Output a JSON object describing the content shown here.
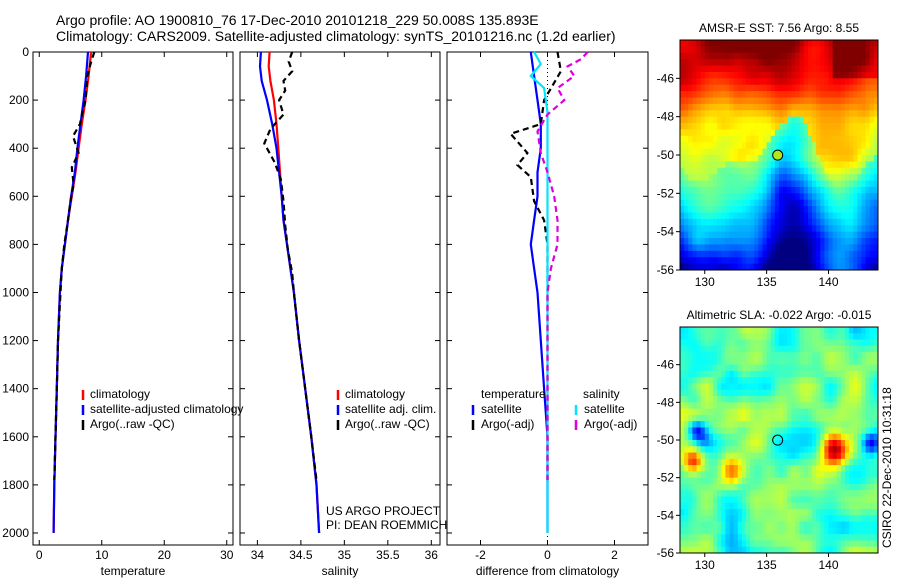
{
  "header": {
    "line1": "Argo profile: AO 1900810_76 17-Dec-2010 20101218_229 50.008S 135.893E",
    "line2": "Climatology: CARS2009. Satellite-adjusted climatology: synTS_20101216.nc (1.2d earlier)"
  },
  "side_label": "CSIRO 22-Dec-2010 10:31:18",
  "colors": {
    "climatology": "#ff0000",
    "satellite": "#0000ff",
    "argo": "#000000",
    "sat_salinity": "#00e5ff",
    "argo_salinity": "#dd00dd"
  },
  "chart_data": [
    {
      "type": "line",
      "id": "temperature",
      "xlabel": "temperature",
      "xlim": [
        -1,
        31
      ],
      "ylim": [
        2050,
        0
      ],
      "xticks": [
        0,
        10,
        20,
        30
      ],
      "yticks": [
        0,
        200,
        400,
        600,
        800,
        1000,
        1200,
        1400,
        1600,
        1800,
        2000
      ],
      "legend": [
        "climatology",
        "satellite-adjusted climatology",
        "Argo(..raw -QC)"
      ],
      "series": [
        {
          "name": "climatology",
          "color": "#ff0000",
          "dash": false,
          "points": [
            [
              8.3,
              0
            ],
            [
              7.9,
              100
            ],
            [
              7.4,
              200
            ],
            [
              6.8,
              300
            ],
            [
              6.3,
              400
            ],
            [
              5.8,
              500
            ],
            [
              5.2,
              600
            ],
            [
              4.6,
              700
            ],
            [
              4.1,
              800
            ],
            [
              3.6,
              900
            ],
            [
              3.3,
              1000
            ],
            [
              3.0,
              1200
            ],
            [
              2.8,
              1400
            ],
            [
              2.6,
              1600
            ],
            [
              2.4,
              1800
            ],
            [
              2.3,
              2000
            ]
          ]
        },
        {
          "name": "satellite-adjusted climatology",
          "color": "#0000ff",
          "dash": false,
          "points": [
            [
              7.8,
              0
            ],
            [
              7.5,
              100
            ],
            [
              7.1,
              200
            ],
            [
              6.6,
              300
            ],
            [
              6.1,
              400
            ],
            [
              5.7,
              500
            ],
            [
              5.1,
              600
            ],
            [
              4.6,
              700
            ],
            [
              4.1,
              800
            ],
            [
              3.6,
              900
            ],
            [
              3.3,
              1000
            ],
            [
              3.0,
              1200
            ],
            [
              2.8,
              1400
            ],
            [
              2.6,
              1600
            ],
            [
              2.4,
              1800
            ],
            [
              2.3,
              2000
            ]
          ]
        },
        {
          "name": "Argo(..raw -QC)",
          "color": "#000000",
          "dash": true,
          "points": [
            [
              8.8,
              0
            ],
            [
              8.2,
              50
            ],
            [
              7.7,
              100
            ],
            [
              7.4,
              200
            ],
            [
              6.5,
              300
            ],
            [
              5.4,
              350
            ],
            [
              6.3,
              420
            ],
            [
              5.2,
              480
            ],
            [
              5.5,
              550
            ],
            [
              5.0,
              620
            ],
            [
              4.6,
              700
            ],
            [
              4.0,
              800
            ],
            [
              3.6,
              900
            ],
            [
              3.4,
              1000
            ],
            [
              3.0,
              1200
            ],
            [
              2.8,
              1400
            ],
            [
              2.6,
              1600
            ],
            [
              2.4,
              1780
            ]
          ]
        }
      ]
    },
    {
      "type": "line",
      "id": "salinity",
      "xlabel": "salinity",
      "xlim": [
        33.8,
        36.1
      ],
      "ylim": [
        2050,
        0
      ],
      "xticks": [
        34,
        34.5,
        35,
        35.5,
        36
      ],
      "legend": [
        "climatology",
        "satellite adj. clim.",
        "Argo(..raw -QC)"
      ],
      "annotation": [
        "US ARGO PROJECT",
        "PI: DEAN ROEMMICH"
      ],
      "series": [
        {
          "name": "climatology",
          "color": "#ff0000",
          "dash": false,
          "points": [
            [
              34.14,
              0
            ],
            [
              34.13,
              60
            ],
            [
              34.15,
              120
            ],
            [
              34.19,
              200
            ],
            [
              34.22,
              300
            ],
            [
              34.24,
              400
            ],
            [
              34.26,
              500
            ],
            [
              34.28,
              600
            ],
            [
              34.3,
              700
            ],
            [
              34.34,
              800
            ],
            [
              34.38,
              900
            ],
            [
              34.42,
              1000
            ],
            [
              34.48,
              1200
            ],
            [
              34.55,
              1400
            ],
            [
              34.62,
              1600
            ],
            [
              34.68,
              1800
            ],
            [
              34.71,
              2000
            ]
          ]
        },
        {
          "name": "satellite adj. clim.",
          "color": "#0000ff",
          "dash": false,
          "points": [
            [
              34.04,
              0
            ],
            [
              34.03,
              60
            ],
            [
              34.05,
              120
            ],
            [
              34.11,
              200
            ],
            [
              34.17,
              300
            ],
            [
              34.22,
              400
            ],
            [
              34.25,
              500
            ],
            [
              34.28,
              600
            ],
            [
              34.3,
              700
            ],
            [
              34.34,
              800
            ],
            [
              34.38,
              900
            ],
            [
              34.42,
              1000
            ],
            [
              34.48,
              1200
            ],
            [
              34.55,
              1400
            ],
            [
              34.62,
              1600
            ],
            [
              34.68,
              1800
            ],
            [
              34.71,
              2000
            ]
          ]
        },
        {
          "name": "Argo(..raw -QC)",
          "color": "#000000",
          "dash": true,
          "points": [
            [
              34.4,
              0
            ],
            [
              34.36,
              40
            ],
            [
              34.4,
              80
            ],
            [
              34.3,
              120
            ],
            [
              34.32,
              160
            ],
            [
              34.25,
              200
            ],
            [
              34.3,
              260
            ],
            [
              34.15,
              320
            ],
            [
              34.08,
              380
            ],
            [
              34.2,
              460
            ],
            [
              34.27,
              530
            ],
            [
              34.3,
              620
            ],
            [
              34.32,
              720
            ],
            [
              34.35,
              820
            ],
            [
              34.4,
              920
            ],
            [
              34.42,
              1000
            ],
            [
              34.48,
              1200
            ],
            [
              34.55,
              1400
            ],
            [
              34.62,
              1600
            ],
            [
              34.68,
              1780
            ]
          ]
        }
      ]
    },
    {
      "type": "line",
      "id": "difference",
      "xlabel": "difference from climatology",
      "xlim": [
        -3,
        3
      ],
      "ylim": [
        2050,
        0
      ],
      "xticks": [
        -2,
        0,
        2
      ],
      "legend_temp_title": "temperature",
      "legend_sal_title": "salinity",
      "legend": [
        "satellite",
        "Argo(-adj)",
        "satellite",
        "Argo(-adj)"
      ],
      "series": [
        {
          "name": "temperature satellite",
          "color": "#0000ff",
          "dash": false,
          "points": [
            [
              -0.5,
              0
            ],
            [
              -0.4,
              100
            ],
            [
              -0.3,
              200
            ],
            [
              -0.2,
              300
            ],
            [
              -0.2,
              400
            ],
            [
              -0.3,
              500
            ],
            [
              -0.3,
              600
            ],
            [
              -0.4,
              700
            ],
            [
              -0.5,
              800
            ],
            [
              -0.4,
              900
            ],
            [
              -0.3,
              1000
            ],
            [
              -0.2,
              1200
            ],
            [
              -0.1,
              1400
            ],
            [
              0,
              1600
            ],
            [
              0,
              2000
            ]
          ]
        },
        {
          "name": "temperature Argo(-adj)",
          "color": "#000000",
          "dash": true,
          "points": [
            [
              0.3,
              0
            ],
            [
              0.4,
              80
            ],
            [
              -0.1,
              200
            ],
            [
              -0.2,
              300
            ],
            [
              -1.1,
              340
            ],
            [
              -0.6,
              420
            ],
            [
              -0.9,
              470
            ],
            [
              -0.5,
              520
            ],
            [
              -0.4,
              620
            ],
            [
              -0.1,
              700
            ],
            [
              0,
              800
            ],
            [
              0,
              1000
            ],
            [
              0,
              1200
            ],
            [
              0,
              1400
            ],
            [
              0,
              1600
            ],
            [
              0,
              1780
            ]
          ]
        },
        {
          "name": "salinity satellite",
          "color": "#00e5ff",
          "dash": false,
          "points": [
            [
              -0.4,
              0
            ],
            [
              -0.2,
              50
            ],
            [
              -0.5,
              100
            ],
            [
              -0.1,
              150
            ],
            [
              0,
              250
            ],
            [
              0,
              400
            ],
            [
              0,
              600
            ],
            [
              0,
              800
            ],
            [
              0,
              1000
            ],
            [
              0,
              1200
            ],
            [
              0,
              1400
            ],
            [
              0,
              1600
            ],
            [
              0,
              1800
            ],
            [
              0,
              2000
            ]
          ]
        },
        {
          "name": "salinity Argo(-adj)",
          "color": "#dd00dd",
          "dash": true,
          "points": [
            [
              1.2,
              0
            ],
            [
              1.0,
              30
            ],
            [
              0.6,
              60
            ],
            [
              0.8,
              100
            ],
            [
              0.3,
              150
            ],
            [
              0.5,
              200
            ],
            [
              0,
              260
            ],
            [
              -0.3,
              330
            ],
            [
              -0.2,
              420
            ],
            [
              0,
              500
            ],
            [
              0.2,
              600
            ],
            [
              0.3,
              700
            ],
            [
              0.3,
              800
            ],
            [
              0.1,
              900
            ],
            [
              0,
              1000
            ],
            [
              0,
              1200
            ],
            [
              0,
              1400
            ],
            [
              0,
              1600
            ],
            [
              0,
              1780
            ]
          ]
        }
      ]
    },
    {
      "type": "heatmap",
      "id": "sst",
      "title": "AMSR-E SST: 7.56 Argo: 8.55",
      "xlim": [
        128,
        144
      ],
      "ylim": [
        -56,
        -44
      ],
      "xticks": [
        130,
        135,
        140
      ],
      "yticks": [
        -46,
        -48,
        -50,
        -52,
        -54,
        -56
      ],
      "marker": {
        "lon": 135.893,
        "lat": -50.008
      }
    },
    {
      "type": "heatmap",
      "id": "sla",
      "title": "Altimetric SLA: -0.022 Argo: -0.015",
      "xlim": [
        128,
        144
      ],
      "ylim": [
        -56,
        -44
      ],
      "xticks": [
        130,
        135,
        140
      ],
      "yticks": [
        -46,
        -48,
        -50,
        -52,
        -54,
        -56
      ],
      "marker": {
        "lon": 135.893,
        "lat": -50.008
      }
    }
  ]
}
